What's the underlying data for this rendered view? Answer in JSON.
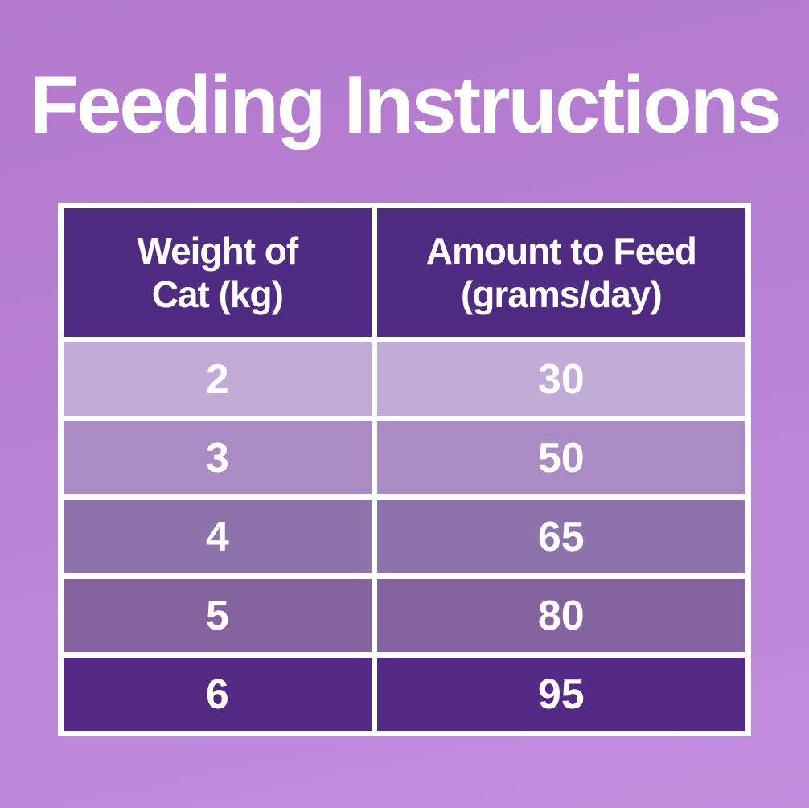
{
  "title": "Feeding Instructions",
  "colors": {
    "background_top": "#b279cd",
    "background_bottom": "#c28fdd",
    "grid_border": "#ffffff",
    "header_bg": "#4f2c82",
    "text": "#ffffff",
    "row_bgs": [
      "#c2abd6",
      "#a98cc3",
      "#8e73ad",
      "#84639f",
      "#552a84"
    ]
  },
  "table": {
    "header": {
      "weight_label": "Weight of\nCat (kg)",
      "amount_label": "Amount to Feed\n(grams/day)"
    },
    "rows": [
      {
        "weight": "2",
        "amount": "30",
        "bg": "#c2abd6"
      },
      {
        "weight": "3",
        "amount": "50",
        "bg": "#a98cc3"
      },
      {
        "weight": "4",
        "amount": "65",
        "bg": "#8e73ad"
      },
      {
        "weight": "5",
        "amount": "80",
        "bg": "#84639f"
      },
      {
        "weight": "6",
        "amount": "95",
        "bg": "#552a84"
      }
    ]
  },
  "chart_data": {
    "type": "table",
    "title": "Feeding Instructions",
    "columns": [
      "Weight of Cat (kg)",
      "Amount to Feed (grams/day)"
    ],
    "rows": [
      [
        2,
        30
      ],
      [
        3,
        50
      ],
      [
        4,
        65
      ],
      [
        5,
        80
      ],
      [
        6,
        95
      ]
    ]
  }
}
